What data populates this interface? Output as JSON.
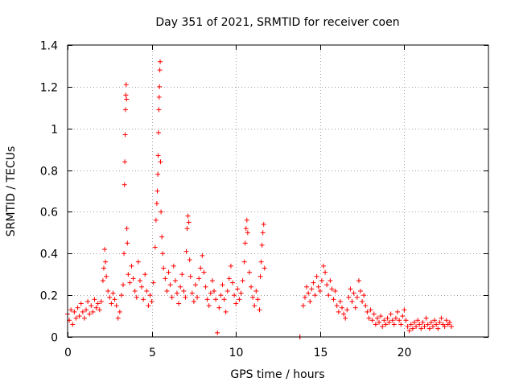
{
  "chart_data": {
    "type": "scatter",
    "title": "Day 351 of 2021, SRMTID for receiver coen",
    "xlabel": "GPS time / hours",
    "ylabel": "SRMTID / TECUs",
    "xlim": [
      0,
      25
    ],
    "ylim": [
      0,
      1.4
    ],
    "xticks": [
      0,
      5,
      10,
      15,
      20
    ],
    "xtick_labels": [
      "0",
      "5",
      "10",
      "15",
      "20"
    ],
    "yticks": [
      0,
      0.2,
      0.4,
      0.6,
      0.8,
      1,
      1.2,
      1.4
    ],
    "ytick_labels": [
      "0",
      "0.2",
      "0.4",
      "0.6",
      "0.8",
      "1",
      "1.2",
      "1.4"
    ],
    "grid": true,
    "marker": "+",
    "color": "#ff0000",
    "series": [
      {
        "name": "SRMTID",
        "points": [
          [
            0.0,
            0.11
          ],
          [
            0.1,
            0.08
          ],
          [
            0.2,
            0.13
          ],
          [
            0.3,
            0.06
          ],
          [
            0.4,
            0.12
          ],
          [
            0.5,
            0.09
          ],
          [
            0.6,
            0.14
          ],
          [
            0.7,
            0.1
          ],
          [
            0.8,
            0.16
          ],
          [
            0.9,
            0.12
          ],
          [
            1.0,
            0.09
          ],
          [
            1.1,
            0.13
          ],
          [
            1.2,
            0.17
          ],
          [
            1.3,
            0.11
          ],
          [
            1.4,
            0.15
          ],
          [
            1.5,
            0.12
          ],
          [
            1.6,
            0.18
          ],
          [
            1.7,
            0.14
          ],
          [
            1.8,
            0.16
          ],
          [
            1.9,
            0.13
          ],
          [
            2.0,
            0.17
          ],
          [
            2.1,
            0.27
          ],
          [
            2.15,
            0.33
          ],
          [
            2.2,
            0.42
          ],
          [
            2.25,
            0.36
          ],
          [
            2.3,
            0.29
          ],
          [
            2.4,
            0.22
          ],
          [
            2.5,
            0.19
          ],
          [
            2.6,
            0.16
          ],
          [
            2.7,
            0.21
          ],
          [
            2.8,
            0.18
          ],
          [
            2.9,
            0.15
          ],
          [
            3.0,
            0.09
          ],
          [
            3.1,
            0.12
          ],
          [
            3.2,
            0.2
          ],
          [
            3.3,
            0.25
          ],
          [
            3.35,
            0.4
          ],
          [
            3.38,
            0.73
          ],
          [
            3.4,
            0.84
          ],
          [
            3.42,
            0.97
          ],
          [
            3.44,
            1.09
          ],
          [
            3.46,
            1.16
          ],
          [
            3.48,
            1.21
          ],
          [
            3.5,
            1.14
          ],
          [
            3.52,
            0.52
          ],
          [
            3.55,
            0.45
          ],
          [
            3.6,
            0.3
          ],
          [
            3.7,
            0.26
          ],
          [
            3.8,
            0.34
          ],
          [
            3.9,
            0.28
          ],
          [
            4.0,
            0.22
          ],
          [
            4.1,
            0.19
          ],
          [
            4.2,
            0.36
          ],
          [
            4.3,
            0.27
          ],
          [
            4.4,
            0.24
          ],
          [
            4.5,
            0.18
          ],
          [
            4.6,
            0.3
          ],
          [
            4.7,
            0.22
          ],
          [
            4.8,
            0.15
          ],
          [
            4.9,
            0.2
          ],
          [
            5.0,
            0.17
          ],
          [
            5.1,
            0.26
          ],
          [
            5.2,
            0.43
          ],
          [
            5.25,
            0.56
          ],
          [
            5.3,
            0.64
          ],
          [
            5.33,
            0.7
          ],
          [
            5.36,
            0.78
          ],
          [
            5.38,
            0.87
          ],
          [
            5.4,
            0.98
          ],
          [
            5.42,
            1.09
          ],
          [
            5.44,
            1.15
          ],
          [
            5.46,
            1.2
          ],
          [
            5.48,
            1.28
          ],
          [
            5.5,
            1.32
          ],
          [
            5.52,
            0.84
          ],
          [
            5.55,
            0.6
          ],
          [
            5.6,
            0.48
          ],
          [
            5.65,
            0.4
          ],
          [
            5.7,
            0.33
          ],
          [
            5.8,
            0.28
          ],
          [
            5.9,
            0.22
          ],
          [
            6.0,
            0.31
          ],
          [
            6.1,
            0.25
          ],
          [
            6.2,
            0.19
          ],
          [
            6.3,
            0.34
          ],
          [
            6.4,
            0.27
          ],
          [
            6.5,
            0.21
          ],
          [
            6.6,
            0.16
          ],
          [
            6.7,
            0.24
          ],
          [
            6.8,
            0.3
          ],
          [
            6.9,
            0.22
          ],
          [
            7.0,
            0.19
          ],
          [
            7.05,
            0.41
          ],
          [
            7.1,
            0.52
          ],
          [
            7.15,
            0.58
          ],
          [
            7.2,
            0.55
          ],
          [
            7.25,
            0.37
          ],
          [
            7.3,
            0.29
          ],
          [
            7.4,
            0.21
          ],
          [
            7.5,
            0.17
          ],
          [
            7.6,
            0.25
          ],
          [
            7.7,
            0.19
          ],
          [
            7.8,
            0.28
          ],
          [
            7.9,
            0.33
          ],
          [
            8.0,
            0.39
          ],
          [
            8.1,
            0.31
          ],
          [
            8.2,
            0.24
          ],
          [
            8.3,
            0.18
          ],
          [
            8.4,
            0.15
          ],
          [
            8.5,
            0.21
          ],
          [
            8.6,
            0.27
          ],
          [
            8.7,
            0.22
          ],
          [
            8.8,
            0.18
          ],
          [
            8.9,
            0.02
          ],
          [
            9.0,
            0.14
          ],
          [
            9.1,
            0.2
          ],
          [
            9.2,
            0.25
          ],
          [
            9.3,
            0.18
          ],
          [
            9.4,
            0.12
          ],
          [
            9.5,
            0.22
          ],
          [
            9.6,
            0.28
          ],
          [
            9.7,
            0.34
          ],
          [
            9.8,
            0.26
          ],
          [
            9.9,
            0.2
          ],
          [
            10.0,
            0.16
          ],
          [
            10.1,
            0.23
          ],
          [
            10.2,
            0.18
          ],
          [
            10.3,
            0.21
          ],
          [
            10.4,
            0.27
          ],
          [
            10.5,
            0.36
          ],
          [
            10.55,
            0.45
          ],
          [
            10.6,
            0.52
          ],
          [
            10.65,
            0.56
          ],
          [
            10.7,
            0.5
          ],
          [
            10.8,
            0.31
          ],
          [
            10.9,
            0.24
          ],
          [
            11.0,
            0.19
          ],
          [
            11.1,
            0.15
          ],
          [
            11.2,
            0.22
          ],
          [
            11.3,
            0.18
          ],
          [
            11.4,
            0.13
          ],
          [
            11.45,
            0.29
          ],
          [
            11.5,
            0.36
          ],
          [
            11.55,
            0.44
          ],
          [
            11.6,
            0.5
          ],
          [
            11.65,
            0.54
          ],
          [
            11.7,
            0.33
          ],
          [
            13.8,
            0.0
          ],
          [
            13.8,
            0.0
          ],
          [
            14.0,
            0.15
          ],
          [
            14.1,
            0.19
          ],
          [
            14.2,
            0.24
          ],
          [
            14.3,
            0.21
          ],
          [
            14.4,
            0.17
          ],
          [
            14.5,
            0.23
          ],
          [
            14.6,
            0.26
          ],
          [
            14.7,
            0.2
          ],
          [
            14.8,
            0.29
          ],
          [
            14.9,
            0.24
          ],
          [
            15.0,
            0.22
          ],
          [
            15.1,
            0.27
          ],
          [
            15.2,
            0.34
          ],
          [
            15.3,
            0.31
          ],
          [
            15.4,
            0.25
          ],
          [
            15.5,
            0.2
          ],
          [
            15.6,
            0.27
          ],
          [
            15.7,
            0.23
          ],
          [
            15.8,
            0.18
          ],
          [
            15.9,
            0.22
          ],
          [
            16.0,
            0.15
          ],
          [
            16.1,
            0.12
          ],
          [
            16.2,
            0.17
          ],
          [
            16.3,
            0.14
          ],
          [
            16.4,
            0.11
          ],
          [
            16.5,
            0.09
          ],
          [
            16.6,
            0.13
          ],
          [
            16.7,
            0.19
          ],
          [
            16.8,
            0.23
          ],
          [
            16.9,
            0.17
          ],
          [
            17.0,
            0.21
          ],
          [
            17.1,
            0.14
          ],
          [
            17.2,
            0.19
          ],
          [
            17.3,
            0.27
          ],
          [
            17.4,
            0.22
          ],
          [
            17.5,
            0.17
          ],
          [
            17.6,
            0.2
          ],
          [
            17.7,
            0.15
          ],
          [
            17.8,
            0.12
          ],
          [
            17.9,
            0.09
          ],
          [
            18.0,
            0.13
          ],
          [
            18.1,
            0.08
          ],
          [
            18.2,
            0.11
          ],
          [
            18.3,
            0.06
          ],
          [
            18.4,
            0.09
          ],
          [
            18.5,
            0.07
          ],
          [
            18.6,
            0.1
          ],
          [
            18.7,
            0.05
          ],
          [
            18.8,
            0.08
          ],
          [
            18.9,
            0.06
          ],
          [
            19.0,
            0.09
          ],
          [
            19.1,
            0.07
          ],
          [
            19.2,
            0.11
          ],
          [
            19.3,
            0.08
          ],
          [
            19.4,
            0.06
          ],
          [
            19.5,
            0.09
          ],
          [
            19.6,
            0.12
          ],
          [
            19.7,
            0.08
          ],
          [
            19.8,
            0.06
          ],
          [
            19.9,
            0.1
          ],
          [
            20.0,
            0.13
          ],
          [
            20.1,
            0.08
          ],
          [
            20.2,
            0.05
          ],
          [
            20.3,
            0.03
          ],
          [
            20.4,
            0.06
          ],
          [
            20.5,
            0.04
          ],
          [
            20.6,
            0.07
          ],
          [
            20.7,
            0.05
          ],
          [
            20.8,
            0.08
          ],
          [
            20.9,
            0.06
          ],
          [
            21.0,
            0.04
          ],
          [
            21.1,
            0.07
          ],
          [
            21.2,
            0.05
          ],
          [
            21.3,
            0.09
          ],
          [
            21.4,
            0.06
          ],
          [
            21.5,
            0.04
          ],
          [
            21.6,
            0.07
          ],
          [
            21.7,
            0.05
          ],
          [
            21.8,
            0.08
          ],
          [
            21.9,
            0.06
          ],
          [
            22.0,
            0.04
          ],
          [
            22.1,
            0.07
          ],
          [
            22.2,
            0.09
          ],
          [
            22.3,
            0.06
          ],
          [
            22.4,
            0.05
          ],
          [
            22.5,
            0.08
          ],
          [
            22.6,
            0.06
          ],
          [
            22.7,
            0.07
          ],
          [
            22.8,
            0.05
          ]
        ]
      }
    ]
  }
}
